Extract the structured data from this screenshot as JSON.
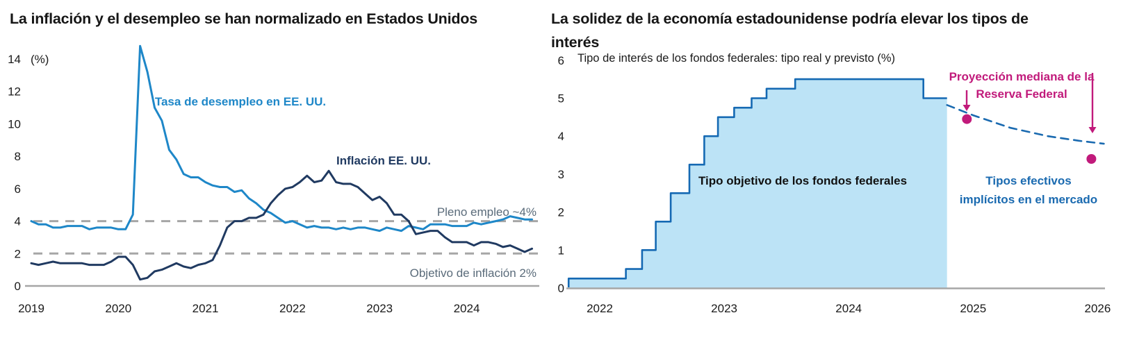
{
  "page": {
    "background": "#ffffff"
  },
  "chart_data": [
    {
      "type": "line",
      "title": "La inflación y el desempleo se han normalizado en Estados Unidos",
      "unit_label": "(%)",
      "xlabel": "",
      "ylabel": "%",
      "xlim": [
        2019,
        2024.85
      ],
      "ylim": [
        0,
        14
      ],
      "grid": false,
      "legend_position": "inline-annotations",
      "x_start_year": 2019,
      "x_step": "monthly",
      "y_ticks": [
        0,
        2,
        4,
        6,
        8,
        10,
        12,
        14
      ],
      "x_ticks": [
        2019,
        2020,
        2021,
        2022,
        2023,
        2024
      ],
      "series": [
        {
          "id": "unemployment",
          "name": "Tasa de desempleo en EE. UU.",
          "color": "#1e87c8",
          "values": [
            4.0,
            3.8,
            3.8,
            3.6,
            3.6,
            3.7,
            3.7,
            3.7,
            3.5,
            3.6,
            3.6,
            3.6,
            3.5,
            3.5,
            4.4,
            14.8,
            13.2,
            11.0,
            10.2,
            8.4,
            7.8,
            6.9,
            6.7,
            6.7,
            6.4,
            6.2,
            6.1,
            6.1,
            5.8,
            5.9,
            5.4,
            5.1,
            4.7,
            4.5,
            4.2,
            3.9,
            4.0,
            3.8,
            3.6,
            3.7,
            3.6,
            3.6,
            3.5,
            3.6,
            3.5,
            3.6,
            3.6,
            3.5,
            3.4,
            3.6,
            3.5,
            3.4,
            3.7,
            3.6,
            3.5,
            3.8,
            3.8,
            3.8,
            3.7,
            3.7,
            3.7,
            3.9,
            3.8,
            3.9,
            4.0,
            4.1,
            4.3,
            4.2,
            4.1,
            4.1
          ]
        },
        {
          "id": "inflation",
          "name": "Inflación EE. UU.",
          "color": "#203a61",
          "values": [
            1.4,
            1.3,
            1.4,
            1.5,
            1.4,
            1.4,
            1.4,
            1.4,
            1.3,
            1.3,
            1.3,
            1.5,
            1.8,
            1.8,
            1.3,
            0.4,
            0.5,
            0.9,
            1.0,
            1.2,
            1.4,
            1.2,
            1.1,
            1.3,
            1.4,
            1.6,
            2.5,
            3.6,
            4.0,
            4.0,
            4.2,
            4.2,
            4.4,
            5.1,
            5.6,
            6.0,
            6.1,
            6.4,
            6.8,
            6.4,
            6.5,
            7.1,
            6.4,
            6.3,
            6.3,
            6.1,
            5.7,
            5.3,
            5.5,
            5.1,
            4.4,
            4.4,
            4.0,
            3.2,
            3.3,
            3.4,
            3.4,
            3.0,
            2.7,
            2.7,
            2.7,
            2.5,
            2.7,
            2.7,
            2.6,
            2.4,
            2.5,
            2.3,
            2.1,
            2.3
          ]
        }
      ],
      "reference_lines": [
        {
          "id": "full-employment",
          "value": 4,
          "label": "Pleno empleo ~4%",
          "color": "#a6a6a6"
        },
        {
          "id": "inflation-target",
          "value": 2,
          "label": "Objetivo de inflación 2%",
          "color": "#a6a6a6"
        }
      ]
    },
    {
      "type": "area",
      "title": "La solidez de la economía estadounidense podría elevar los tipos de interés",
      "subtitle": "Tipo de interés de los fondos federales: tipo real y previsto (%)",
      "xlabel": "",
      "ylabel": "%",
      "xlim": [
        2021.75,
        2026.06
      ],
      "ylim": [
        0,
        6
      ],
      "grid": false,
      "y_ticks": [
        0,
        1,
        2,
        3,
        4,
        5,
        6
      ],
      "x_ticks": [
        2022,
        2023,
        2024,
        2025,
        2026
      ],
      "area_series": {
        "id": "fed-funds-target",
        "name": "Tipo objetivo de los fondos federales",
        "fill": "#bce3f6",
        "stroke": "#1569b3",
        "step_points": [
          [
            2021.75,
            0.25
          ],
          [
            2022.21,
            0.5
          ],
          [
            2022.34,
            1.0
          ],
          [
            2022.45,
            1.75
          ],
          [
            2022.57,
            2.5
          ],
          [
            2022.72,
            3.25
          ],
          [
            2022.84,
            4.0
          ],
          [
            2022.95,
            4.5
          ],
          [
            2023.08,
            4.75
          ],
          [
            2023.22,
            5.0
          ],
          [
            2023.34,
            5.25
          ],
          [
            2023.57,
            5.5
          ],
          [
            2024.6,
            5.0
          ]
        ],
        "end_x": 2024.79
      },
      "projection_line": {
        "id": "market-implied-rates",
        "name": "Tipos efectivos implícitos en el mercado",
        "label_lines": [
          "Tipos efectivos",
          "implícitos en el mercado"
        ],
        "color": "#1a6ab0",
        "style": "dashed",
        "points": [
          [
            2024.79,
            4.82
          ],
          [
            2025.0,
            4.55
          ],
          [
            2025.3,
            4.22
          ],
          [
            2025.6,
            4.0
          ],
          [
            2025.85,
            3.88
          ],
          [
            2026.05,
            3.8
          ]
        ]
      },
      "fed_dots": {
        "id": "fed-median-projection",
        "name": "Proyección mediana de la Reserva Federal",
        "label_lines": [
          "Proyección mediana de la",
          "Reserva Federal"
        ],
        "color": "#c11a7b",
        "points": [
          [
            2024.95,
            4.45
          ],
          [
            2025.95,
            3.4
          ]
        ]
      }
    }
  ]
}
